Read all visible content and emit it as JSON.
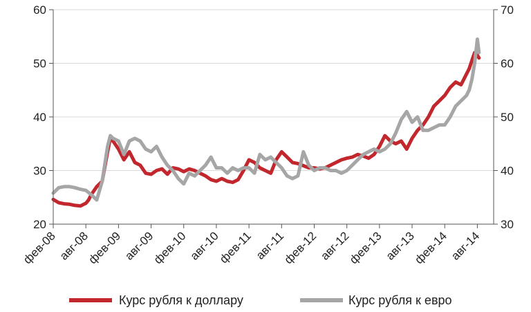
{
  "chart_data": {
    "type": "line",
    "title": "",
    "xlabel": "",
    "ylabel_left": "",
    "ylabel_right": "",
    "grid": true,
    "legend_position": "bottom",
    "x_tick_labels": [
      "фев-08",
      "авг-08",
      "фев-09",
      "авг-09",
      "фев-10",
      "авг-10",
      "фев-11",
      "авг-11",
      "фев-12",
      "авг-12",
      "фев-13",
      "авг-13",
      "фев-14",
      "авг-14"
    ],
    "x_range": [
      0,
      81
    ],
    "y_left": {
      "min": 20,
      "max": 60,
      "ticks": [
        20,
        30,
        40,
        50,
        60
      ]
    },
    "y_right": {
      "min": 30,
      "max": 70,
      "ticks": [
        30,
        40,
        50,
        60,
        70
      ]
    },
    "series": [
      {
        "name": "Курс рубля к доллару",
        "axis": "left",
        "color": "#c1272d",
        "x": [
          0,
          1,
          2,
          3,
          4,
          5,
          6,
          6.5,
          7,
          8,
          9,
          10,
          10.5,
          11,
          12,
          13,
          14,
          15,
          16,
          17,
          18,
          19,
          20,
          21,
          22,
          23,
          24,
          25,
          26,
          27,
          28,
          29,
          30,
          31,
          32,
          33,
          34,
          35,
          36,
          37,
          38,
          39,
          40,
          41,
          42,
          43,
          44,
          45,
          46,
          47,
          48,
          49,
          50,
          51,
          52,
          53,
          54,
          55,
          56,
          57,
          58,
          59,
          60,
          61,
          62,
          63,
          64,
          65,
          66,
          67,
          68,
          69,
          70,
          71,
          72,
          73,
          74,
          75,
          76,
          76.5,
          77,
          77.5,
          78,
          78.3
        ],
        "values": [
          24.6,
          24.0,
          23.8,
          23.7,
          23.5,
          23.4,
          23.9,
          24.5,
          25.5,
          27.0,
          28.0,
          33.5,
          36.0,
          35.5,
          34.0,
          32.0,
          33.5,
          31.5,
          31.0,
          29.5,
          29.3,
          30.0,
          30.3,
          29.3,
          30.5,
          30.3,
          29.8,
          30.3,
          30.0,
          29.5,
          29.0,
          28.3,
          28.0,
          28.5,
          28.0,
          27.8,
          28.3,
          30.0,
          32.0,
          31.5,
          30.5,
          30.0,
          29.5,
          32.0,
          33.5,
          32.5,
          31.5,
          31.3,
          30.9,
          30.5,
          30.5,
          30.3,
          30.5,
          31.0,
          31.5,
          32.0,
          32.3,
          32.5,
          33.0,
          32.7,
          32.3,
          33.0,
          34.5,
          36.5,
          35.5,
          35.0,
          35.5,
          34.0,
          36.0,
          37.5,
          38.5,
          40.0,
          42.0,
          43.0,
          44.0,
          45.5,
          46.5,
          46.0,
          48.0,
          49.0,
          50.5,
          52.0,
          51.5,
          51.0
        ]
      },
      {
        "name": "Курс рубля к евро",
        "axis": "right",
        "color": "#a6a6a6",
        "x": [
          0,
          1,
          2,
          3,
          4,
          5,
          6,
          7,
          8,
          9,
          10,
          10.5,
          11,
          12,
          13,
          14,
          15,
          16,
          17,
          18,
          19,
          20,
          21,
          22,
          23,
          24,
          25,
          26,
          27,
          28,
          29,
          30,
          31,
          32,
          33,
          34,
          35,
          36,
          37,
          38,
          39,
          40,
          41,
          42,
          43,
          44,
          45,
          46,
          47,
          48,
          49,
          50,
          51,
          52,
          53,
          54,
          55,
          56,
          57,
          58,
          59,
          60,
          61,
          62,
          63,
          64,
          65,
          66,
          67,
          68,
          69,
          70,
          71,
          72,
          73,
          74,
          75,
          76,
          76.5,
          77,
          77.5,
          78,
          78.3
        ],
        "values": [
          35.8,
          36.8,
          37.0,
          37.0,
          36.8,
          36.5,
          36.3,
          35.5,
          34.5,
          38.0,
          44.5,
          46.5,
          46.0,
          45.5,
          43.0,
          45.5,
          46.0,
          45.5,
          44.0,
          43.5,
          44.5,
          42.5,
          41.0,
          40.0,
          38.5,
          37.5,
          39.5,
          39.0,
          40.0,
          41.0,
          42.5,
          40.5,
          40.5,
          39.5,
          40.5,
          40.0,
          40.5,
          40.5,
          39.5,
          43.0,
          42.0,
          42.5,
          41.5,
          40.5,
          39.0,
          38.5,
          39.0,
          43.5,
          41.0,
          40.0,
          40.5,
          40.5,
          40.0,
          40.0,
          39.5,
          40.0,
          41.0,
          42.0,
          43.0,
          43.5,
          44.0,
          43.5,
          44.0,
          45.0,
          47.0,
          49.5,
          51.0,
          49.0,
          50.0,
          47.5,
          47.5,
          48.0,
          48.5,
          48.5,
          50.0,
          52.0,
          53.0,
          54.0,
          55.0,
          57.0,
          60.0,
          64.5,
          62.0
        ]
      }
    ],
    "legend": [
      {
        "label": "Курс рубля к доллару",
        "color": "#c1272d"
      },
      {
        "label": "Курс рубля к евро",
        "color": "#a6a6a6"
      }
    ]
  }
}
